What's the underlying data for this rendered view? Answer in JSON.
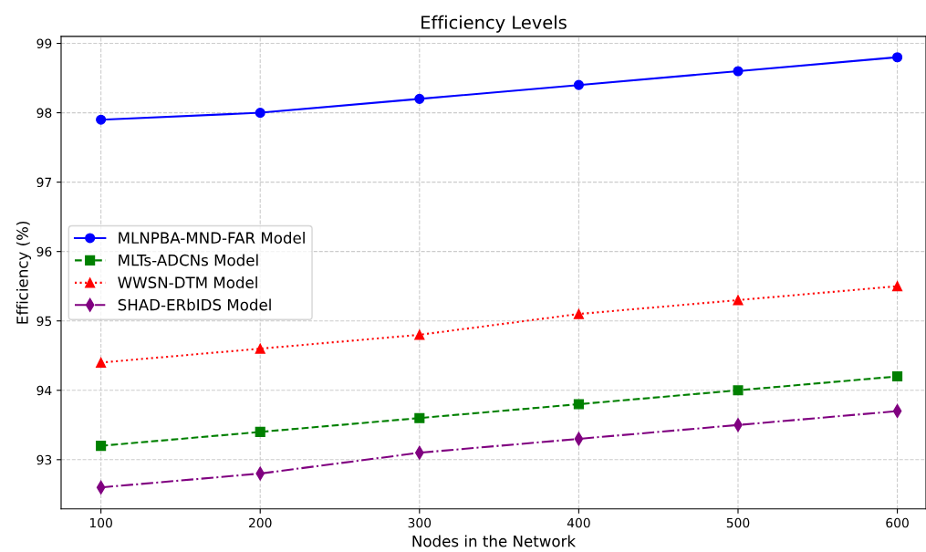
{
  "chart_data": {
    "type": "line",
    "title": "Efficiency Levels",
    "xlabel": "Nodes in the Network",
    "ylabel": "Efficiency (%)",
    "x": [
      100,
      200,
      300,
      400,
      500,
      600
    ],
    "series": [
      {
        "name": "MLNPBA-MND-FAR Model",
        "color": "#0000ff",
        "marker": "circle",
        "line_style": "solid",
        "values": [
          97.9,
          98.0,
          98.2,
          98.4,
          98.6,
          98.8
        ]
      },
      {
        "name": "MLTs-ADCNs Model",
        "color": "#008000",
        "marker": "square",
        "line_style": "dashed",
        "values": [
          93.2,
          93.4,
          93.6,
          93.8,
          94.0,
          94.2
        ]
      },
      {
        "name": "WWSN-DTM Model",
        "color": "#ff0000",
        "marker": "triangle",
        "line_style": "dotted",
        "values": [
          94.4,
          94.6,
          94.8,
          95.1,
          95.3,
          95.5
        ]
      },
      {
        "name": "SHAD-ERbIDS Model",
        "color": "#800080",
        "marker": "diamond",
        "line_style": "dashdot",
        "values": [
          92.6,
          92.8,
          93.1,
          93.3,
          93.5,
          93.7
        ]
      }
    ],
    "xlim": [
      75,
      618
    ],
    "xticks": [
      100,
      200,
      300,
      400,
      500,
      600
    ],
    "ylim": [
      92.29,
      99.1
    ],
    "yticks": [
      93,
      94,
      95,
      96,
      97,
      98,
      99
    ],
    "grid": true,
    "legend": "center left"
  }
}
